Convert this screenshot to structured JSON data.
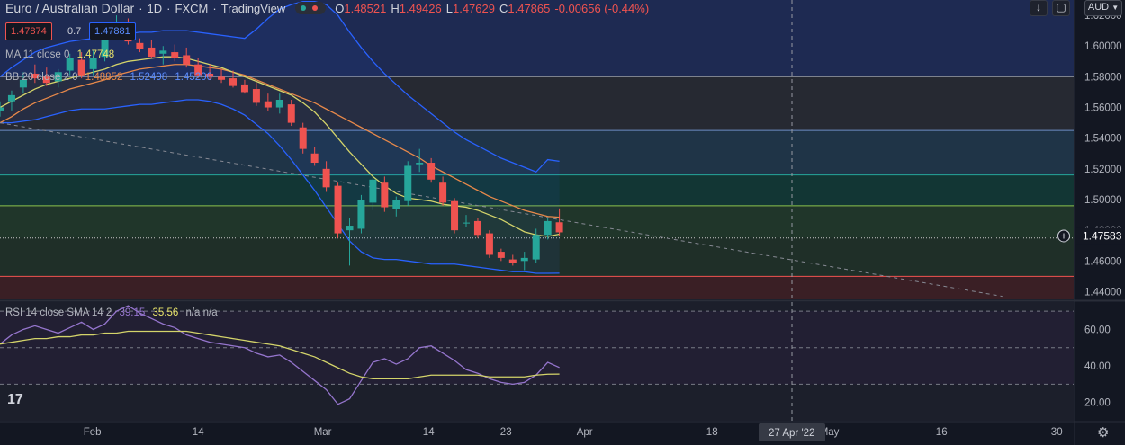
{
  "header": {
    "symbol": "Euro / Australian Dollar",
    "interval": "1D",
    "source": "FXCM",
    "platform": "TradingView",
    "open_label": "O",
    "open": "1.48521",
    "high_label": "H",
    "high": "1.49426",
    "low_label": "L",
    "low": "1.47629",
    "close_label": "C",
    "close": "1.47865",
    "change": "-0.00656 (-0.44%)",
    "bid": "1.47874",
    "spread": "0.7",
    "ask": "1.47881"
  },
  "toolbar": {
    "currency": "AUD",
    "currency_icon": "chevron-down-icon"
  },
  "indicators": {
    "ma_label": "MA 11 close 0",
    "ma_value": "1.47748",
    "bb_label": "BB 20 close 2 0",
    "bb_basis": "1.48852",
    "bb_upper": "1.52498",
    "bb_lower": "1.45206",
    "rsi_label": "RSI 14 close SMA 14 2",
    "rsi_value": "39.15",
    "rsi_sma": "35.56",
    "rsi_extra": "n/a n/a"
  },
  "price_axis": {
    "ticks": [
      "1.62000",
      "1.60000",
      "1.58000",
      "1.56000",
      "1.54000",
      "1.52000",
      "1.50000",
      "1.48000",
      "1.46000",
      "1.44000"
    ],
    "last_price": "1.47583"
  },
  "rsi_axis": {
    "ticks": [
      "60.00",
      "40.00",
      "20.00"
    ]
  },
  "time_axis": {
    "ticks": [
      "Feb",
      "14",
      "Mar",
      "14",
      "23",
      "Apr",
      "18",
      "May",
      "16",
      "30"
    ],
    "crosshair_label": "27 Apr '22"
  },
  "colors": {
    "up": "#26a69a",
    "down": "#ef5350",
    "ma": "#d4d46a",
    "bb_basis": "#e8894a",
    "bb_band": "#2962ff",
    "rsi": "#9575cd",
    "rsi_sma": "#d4d46a",
    "background": "#131722"
  },
  "chart_data": {
    "type": "candlestick",
    "title": "Euro / Australian Dollar",
    "ylim": [
      1.435,
      1.63
    ],
    "rsi_ylim": [
      10,
      75
    ],
    "candles": [
      {
        "o": 1.558,
        "h": 1.564,
        "l": 1.554,
        "c": 1.56
      },
      {
        "o": 1.564,
        "h": 1.571,
        "l": 1.558,
        "c": 1.568
      },
      {
        "o": 1.573,
        "h": 1.583,
        "l": 1.569,
        "c": 1.578
      },
      {
        "o": 1.582,
        "h": 1.588,
        "l": 1.576,
        "c": 1.579
      },
      {
        "o": 1.58,
        "h": 1.586,
        "l": 1.574,
        "c": 1.576
      },
      {
        "o": 1.577,
        "h": 1.585,
        "l": 1.573,
        "c": 1.583
      },
      {
        "o": 1.584,
        "h": 1.595,
        "l": 1.581,
        "c": 1.592
      },
      {
        "o": 1.591,
        "h": 1.596,
        "l": 1.579,
        "c": 1.581
      },
      {
        "o": 1.585,
        "h": 1.597,
        "l": 1.581,
        "c": 1.592
      },
      {
        "o": 1.593,
        "h": 1.611,
        "l": 1.59,
        "c": 1.604
      },
      {
        "o": 1.61,
        "h": 1.62,
        "l": 1.605,
        "c": 1.614
      },
      {
        "o": 1.613,
        "h": 1.618,
        "l": 1.601,
        "c": 1.603
      },
      {
        "o": 1.602,
        "h": 1.605,
        "l": 1.596,
        "c": 1.598
      },
      {
        "o": 1.599,
        "h": 1.604,
        "l": 1.592,
        "c": 1.593
      },
      {
        "o": 1.595,
        "h": 1.6,
        "l": 1.588,
        "c": 1.597
      },
      {
        "o": 1.596,
        "h": 1.601,
        "l": 1.59,
        "c": 1.592
      },
      {
        "o": 1.594,
        "h": 1.599,
        "l": 1.586,
        "c": 1.588
      },
      {
        "o": 1.588,
        "h": 1.592,
        "l": 1.579,
        "c": 1.581
      },
      {
        "o": 1.582,
        "h": 1.588,
        "l": 1.578,
        "c": 1.58
      },
      {
        "o": 1.58,
        "h": 1.585,
        "l": 1.576,
        "c": 1.578
      },
      {
        "o": 1.579,
        "h": 1.584,
        "l": 1.573,
        "c": 1.574
      },
      {
        "o": 1.575,
        "h": 1.578,
        "l": 1.569,
        "c": 1.57
      },
      {
        "o": 1.572,
        "h": 1.576,
        "l": 1.561,
        "c": 1.563
      },
      {
        "o": 1.564,
        "h": 1.569,
        "l": 1.558,
        "c": 1.56
      },
      {
        "o": 1.56,
        "h": 1.569,
        "l": 1.556,
        "c": 1.565
      },
      {
        "o": 1.562,
        "h": 1.565,
        "l": 1.548,
        "c": 1.55
      },
      {
        "o": 1.547,
        "h": 1.55,
        "l": 1.53,
        "c": 1.533
      },
      {
        "o": 1.53,
        "h": 1.534,
        "l": 1.522,
        "c": 1.524
      },
      {
        "o": 1.52,
        "h": 1.525,
        "l": 1.505,
        "c": 1.508
      },
      {
        "o": 1.509,
        "h": 1.511,
        "l": 1.475,
        "c": 1.478
      },
      {
        "o": 1.48,
        "h": 1.488,
        "l": 1.457,
        "c": 1.483
      },
      {
        "o": 1.481,
        "h": 1.503,
        "l": 1.478,
        "c": 1.5
      },
      {
        "o": 1.498,
        "h": 1.516,
        "l": 1.493,
        "c": 1.513
      },
      {
        "o": 1.511,
        "h": 1.515,
        "l": 1.492,
        "c": 1.495
      },
      {
        "o": 1.494,
        "h": 1.502,
        "l": 1.489,
        "c": 1.5
      },
      {
        "o": 1.499,
        "h": 1.525,
        "l": 1.496,
        "c": 1.522
      },
      {
        "o": 1.523,
        "h": 1.533,
        "l": 1.518,
        "c": 1.524
      },
      {
        "o": 1.524,
        "h": 1.527,
        "l": 1.511,
        "c": 1.513
      },
      {
        "o": 1.511,
        "h": 1.515,
        "l": 1.496,
        "c": 1.498
      },
      {
        "o": 1.499,
        "h": 1.501,
        "l": 1.478,
        "c": 1.48
      },
      {
        "o": 1.485,
        "h": 1.49,
        "l": 1.482,
        "c": 1.485
      },
      {
        "o": 1.486,
        "h": 1.488,
        "l": 1.475,
        "c": 1.477
      },
      {
        "o": 1.478,
        "h": 1.48,
        "l": 1.462,
        "c": 1.464
      },
      {
        "o": 1.466,
        "h": 1.468,
        "l": 1.46,
        "c": 1.462
      },
      {
        "o": 1.461,
        "h": 1.464,
        "l": 1.457,
        "c": 1.459
      },
      {
        "o": 1.46,
        "h": 1.466,
        "l": 1.454,
        "c": 1.462
      },
      {
        "o": 1.461,
        "h": 1.481,
        "l": 1.459,
        "c": 1.477
      },
      {
        "o": 1.477,
        "h": 1.488,
        "l": 1.474,
        "c": 1.486
      },
      {
        "o": 1.48521,
        "h": 1.49426,
        "l": 1.47629,
        "c": 1.47865
      }
    ],
    "ma_11": [
      1.56,
      1.564,
      1.568,
      1.572,
      1.575,
      1.577,
      1.579,
      1.581,
      1.583,
      1.585,
      1.588,
      1.59,
      1.591,
      1.592,
      1.593,
      1.593,
      1.592,
      1.59,
      1.588,
      1.586,
      1.583,
      1.58,
      1.577,
      1.574,
      1.571,
      1.568,
      1.563,
      1.557,
      1.549,
      1.54,
      1.531,
      1.523,
      1.515,
      1.509,
      1.504,
      1.501,
      1.5,
      1.499,
      1.497,
      1.496,
      1.495,
      1.493,
      1.49,
      1.487,
      1.483,
      1.479,
      1.477,
      1.476,
      1.47748
    ],
    "bb_basis": [
      1.55,
      1.554,
      1.559,
      1.563,
      1.566,
      1.569,
      1.572,
      1.574,
      1.576,
      1.578,
      1.581,
      1.583,
      1.585,
      1.586,
      1.587,
      1.588,
      1.588,
      1.587,
      1.586,
      1.585,
      1.583,
      1.581,
      1.578,
      1.575,
      1.572,
      1.569,
      1.566,
      1.563,
      1.559,
      1.555,
      1.551,
      1.547,
      1.543,
      1.539,
      1.535,
      1.531,
      1.527,
      1.522,
      1.518,
      1.514,
      1.51,
      1.506,
      1.502,
      1.499,
      1.496,
      1.493,
      1.491,
      1.489,
      1.48852
    ],
    "bb_upper": [
      1.58,
      1.586,
      1.591,
      1.596,
      1.599,
      1.601,
      1.603,
      1.604,
      1.605,
      1.606,
      1.607,
      1.608,
      1.609,
      1.609,
      1.61,
      1.61,
      1.61,
      1.609,
      1.608,
      1.607,
      1.606,
      1.605,
      1.611,
      1.618,
      1.624,
      1.627,
      1.629,
      1.629,
      1.627,
      1.62,
      1.609,
      1.599,
      1.59,
      1.582,
      1.575,
      1.568,
      1.562,
      1.556,
      1.55,
      1.544,
      1.539,
      1.535,
      1.531,
      1.527,
      1.524,
      1.521,
      1.518,
      1.526,
      1.52498
    ],
    "bb_lower": [
      1.55,
      1.55,
      1.551,
      1.552,
      1.554,
      1.556,
      1.558,
      1.559,
      1.559,
      1.559,
      1.56,
      1.561,
      1.562,
      1.562,
      1.563,
      1.564,
      1.565,
      1.565,
      1.564,
      1.562,
      1.559,
      1.555,
      1.549,
      1.543,
      1.535,
      1.526,
      1.516,
      1.506,
      1.495,
      1.484,
      1.473,
      1.466,
      1.462,
      1.461,
      1.461,
      1.46,
      1.459,
      1.458,
      1.458,
      1.458,
      1.457,
      1.456,
      1.455,
      1.454,
      1.453,
      1.453,
      1.452,
      1.452,
      1.45206
    ],
    "rsi": [
      52,
      57,
      60,
      62,
      60,
      58,
      61,
      64,
      60,
      63,
      70,
      73,
      69,
      66,
      63,
      61,
      57,
      55,
      53,
      52,
      51,
      50,
      47,
      45,
      46,
      42,
      37,
      32,
      27,
      19,
      22,
      32,
      42,
      44,
      41,
      44,
      50,
      51,
      47,
      43,
      38,
      36,
      33,
      31,
      30,
      31,
      35,
      42,
      39.15
    ],
    "rsi_sma": [
      52,
      53,
      54,
      55,
      55,
      56,
      56,
      57,
      57,
      58,
      58,
      59,
      59,
      59,
      59,
      59,
      59,
      58,
      57,
      56,
      55,
      54,
      53,
      52,
      51,
      49,
      47,
      45,
      42,
      39,
      36,
      34,
      33,
      33,
      33,
      33,
      34,
      35,
      35,
      35,
      35,
      35,
      34,
      34,
      34,
      34,
      35,
      35.5,
      35.56
    ],
    "sr_levels": [
      1.58,
      1.545,
      1.516,
      1.496,
      1.475,
      1.45
    ],
    "trendline": {
      "from": {
        "idx": 0,
        "price": 1.55
      },
      "to": {
        "idx": 86,
        "price": 1.437
      }
    },
    "rsi_levels": [
      70,
      50,
      30
    ]
  }
}
